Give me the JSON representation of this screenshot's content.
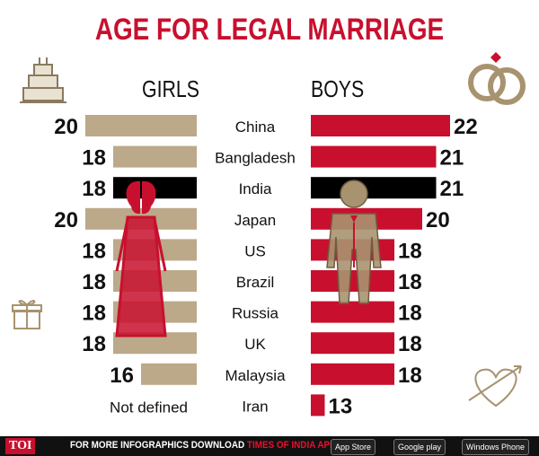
{
  "title": "AGE FOR LEGAL MARRIAGE",
  "headers": {
    "girls": "GIRLS",
    "boys": "BOYS"
  },
  "colors": {
    "girls_bar": "#bba98a",
    "boys_bar": "#c8102e",
    "highlight_bar": "#000000",
    "accent": "#c8102e"
  },
  "chart_data": {
    "type": "bar",
    "title": "AGE FOR LEGAL MARRIAGE",
    "categories": [
      "China",
      "Bangladesh",
      "India",
      "Japan",
      "US",
      "Brazil",
      "Russia",
      "UK",
      "Malaysia",
      "Iran"
    ],
    "series": [
      {
        "name": "GIRLS",
        "values": [
          20,
          18,
          18,
          20,
          18,
          18,
          18,
          18,
          16,
          null
        ],
        "labels": [
          "20",
          "18",
          "18",
          "20",
          "18",
          "18",
          "18",
          "18",
          "16",
          "Not defined"
        ]
      },
      {
        "name": "BOYS",
        "values": [
          22,
          21,
          21,
          20,
          18,
          18,
          18,
          18,
          18,
          13
        ],
        "labels": [
          "22",
          "21",
          "21",
          "20",
          "18",
          "18",
          "18",
          "18",
          "18",
          "13"
        ]
      }
    ],
    "highlight": "India"
  },
  "footer": {
    "logo": "TOI",
    "text_prefix": "FOR MORE  INFOGRAPHICS DOWNLOAD",
    "text_brand": "TIMES OF INDIA",
    "text_suffix": "APP",
    "badges": [
      "App Store",
      "Google play",
      "Windows Phone"
    ]
  },
  "icons": [
    "cake-icon",
    "rings-icon",
    "gift-icon",
    "heart-arrow-icon",
    "bride-icon",
    "groom-icon"
  ]
}
